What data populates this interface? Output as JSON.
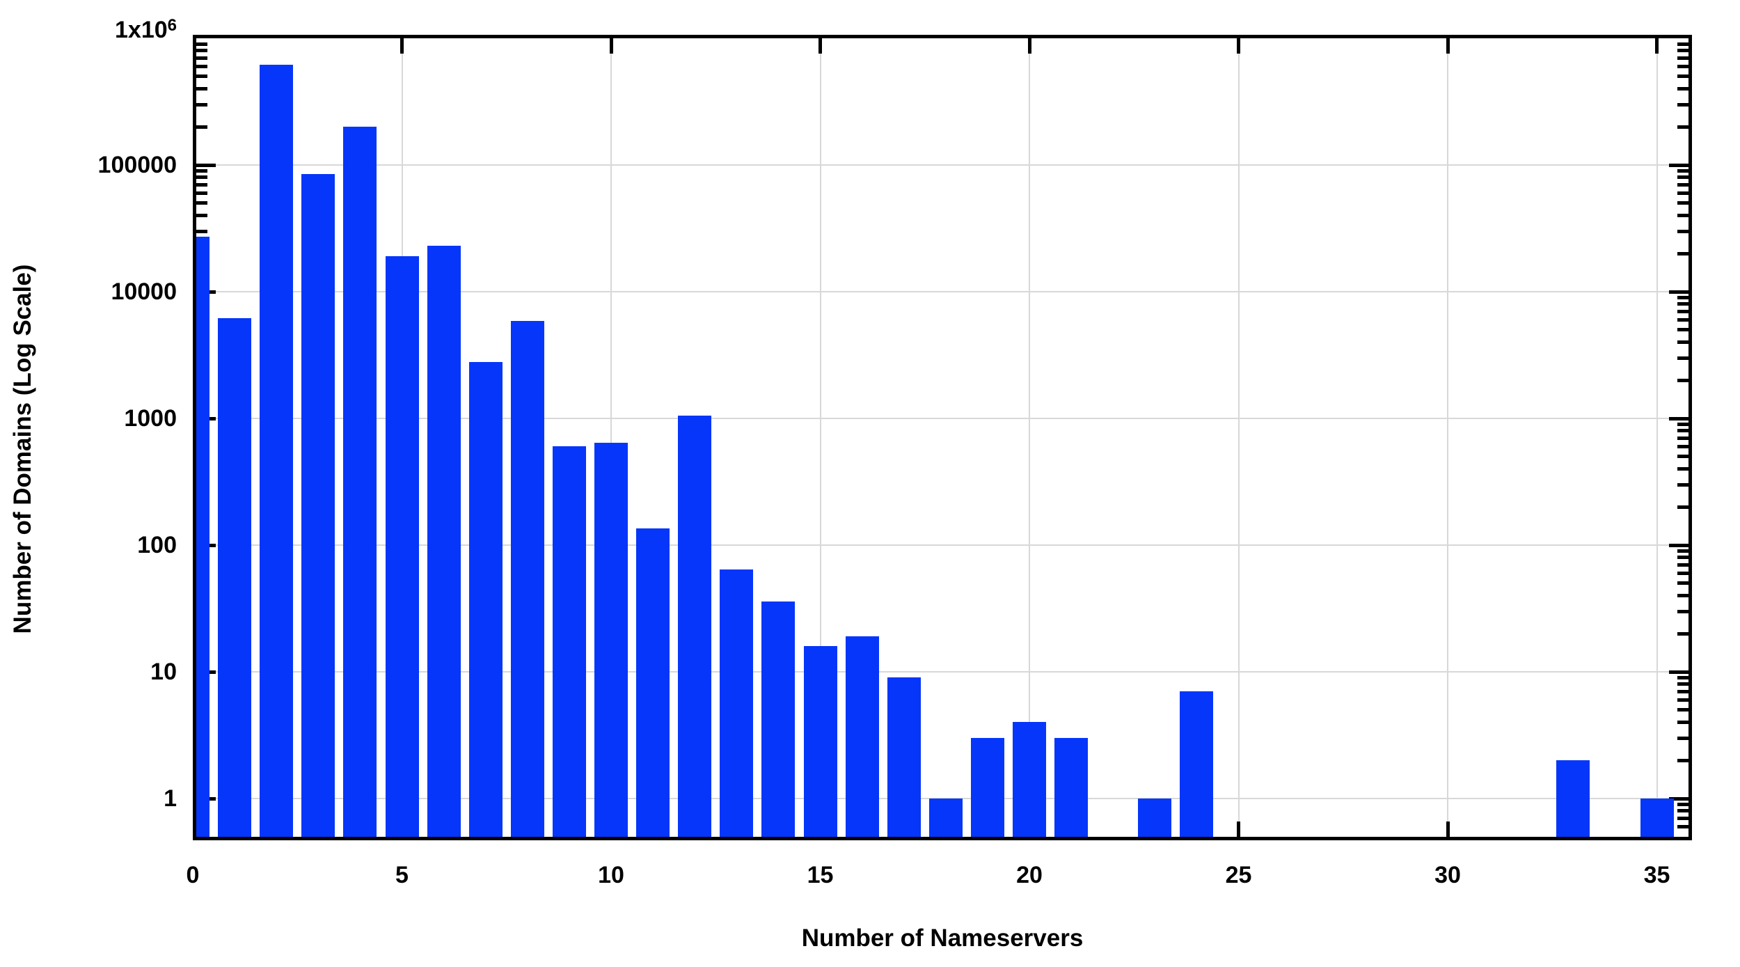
{
  "chart_data": {
    "type": "bar",
    "title": "",
    "xlabel": "Number of Nameservers",
    "ylabel": "Number of Domains (Log Scale)",
    "yscale": "log",
    "grid": true,
    "bar_color": "#0636fa",
    "gridline_color": "#d8d8d8",
    "axis_color": "#000000",
    "xlim": [
      0,
      35.8
    ],
    "ylim": [
      0.5,
      1000000
    ],
    "categories": [
      0,
      1,
      2,
      3,
      4,
      5,
      6,
      7,
      8,
      9,
      10,
      11,
      12,
      13,
      14,
      15,
      16,
      17,
      18,
      19,
      20,
      21,
      22,
      23,
      24,
      25,
      26,
      27,
      28,
      29,
      30,
      31,
      32,
      33,
      34,
      35
    ],
    "values": [
      27000,
      6200,
      620000,
      85000,
      200000,
      19000,
      23000,
      2800,
      5900,
      600,
      640,
      135,
      1050,
      64,
      36,
      16,
      19,
      9,
      1,
      3,
      4,
      3,
      0,
      1,
      7,
      0,
      0,
      0,
      0,
      0,
      0,
      0,
      0,
      2,
      0,
      1
    ],
    "xticks": [
      0,
      5,
      10,
      15,
      20,
      25,
      30,
      35
    ],
    "xtick_labels": [
      "0",
      "5",
      "10",
      "15",
      "20",
      "25",
      "30",
      "35"
    ],
    "yticks": [
      1,
      10,
      100,
      1000,
      10000,
      100000,
      1000000
    ],
    "ytick_labels": [
      "1",
      "10",
      "100",
      "1000",
      "10000",
      "100000",
      "1x10^6"
    ]
  }
}
